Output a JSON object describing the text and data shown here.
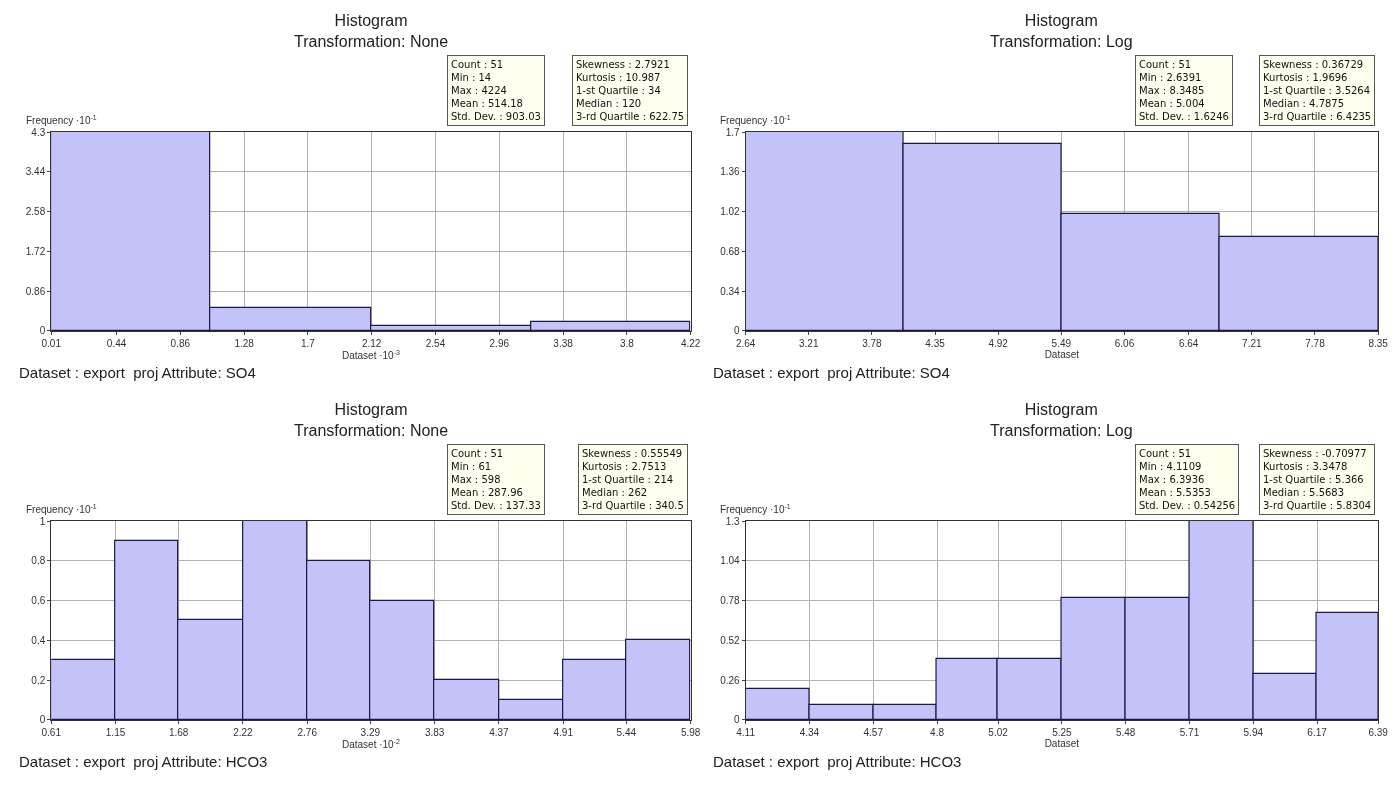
{
  "chart_data": [
    {
      "type": "histogram",
      "title": "Histogram\nTransformation: None",
      "xlabel": "Dataset ·10$^{-3}$",
      "ylabel": "Frequency ·10$^{-1}$",
      "bins": [
        0.01,
        1.06,
        2.12,
        3.17,
        4.22
      ],
      "values": [
        4.3,
        0.5,
        0.1,
        0.2
      ],
      "color": "#c3c3f9",
      "xlim": [
        0.01,
        4.22
      ],
      "xticks": [
        0.01,
        0.44,
        0.86,
        1.28,
        1.7,
        2.12,
        2.54,
        2.96,
        3.38,
        3.8,
        4.22
      ],
      "ylim": [
        0,
        4.3
      ],
      "yticks": [
        0,
        0.86,
        1.72,
        2.58,
        3.44,
        4.3
      ],
      "grid": true,
      "annotations": [
        "Count : 51",
        "Min : 14",
        "Max : 4224",
        "Mean : 514.18",
        "Std. Dev. : 903.03",
        "Skewness : 2.7921",
        "Kurtosis : 10.987",
        "1-st Quartile : 34",
        "Median : 120",
        "3-rd Quartile : 622.75",
        "Dataset : export  proj Attribute: SO4"
      ]
    },
    {
      "type": "histogram",
      "title": "Histogram\nTransformation: Log",
      "xlabel": "Dataset",
      "ylabel": "Frequency ·10$^{-1}$",
      "bins": [
        2.64,
        4.07,
        5.49,
        6.92,
        8.35
      ],
      "values": [
        1.7,
        1.6,
        1.0,
        0.8
      ],
      "color": "#c3c3f9",
      "xlim": [
        2.64,
        8.35
      ],
      "xticks": [
        2.64,
        3.21,
        3.78,
        4.35,
        4.92,
        5.49,
        6.06,
        6.64,
        7.21,
        7.78,
        8.35
      ],
      "ylim": [
        0,
        1.7
      ],
      "yticks": [
        0,
        0.34,
        0.68,
        1.02,
        1.36,
        1.7
      ],
      "grid": true,
      "annotations": [
        "Count : 51",
        "Min : 2.6391",
        "Max : 8.3485",
        "Mean : 5.004",
        "Std. Dev. : 1.6246",
        "Skewness : 0.36729",
        "Kurtosis : 1.9696",
        "1-st Quartile : 3.5264",
        "Median : 4.7875",
        "3-rd Quartile : 6.4235",
        "Dataset : export  proj Attribute: SO4"
      ]
    },
    {
      "type": "histogram",
      "title": "Histogram\nTransformation: None",
      "xlabel": "Dataset ·10$^{-2}$",
      "ylabel": "Frequency ·10$^{-1}$",
      "bins": [
        0.61,
        1.15,
        1.68,
        2.22,
        2.76,
        3.29,
        3.83,
        4.37,
        4.91,
        5.44,
        5.98
      ],
      "values": [
        0.3,
        0.9,
        0.5,
        1.0,
        0.8,
        0.6,
        0.2,
        0.1,
        0.3,
        0.4
      ],
      "color": "#c3c3f9",
      "xlim": [
        0.61,
        5.98
      ],
      "xticks": [
        0.61,
        1.15,
        1.68,
        2.22,
        2.76,
        3.29,
        3.83,
        4.37,
        4.91,
        5.44,
        5.98
      ],
      "ylim": [
        0,
        1
      ],
      "yticks": [
        0,
        0.2,
        0.4,
        0.6,
        0.8,
        1
      ],
      "grid": true,
      "annotations": [
        "Count : 51",
        "Min : 61",
        "Max : 598",
        "Mean : 287.96",
        "Std. Dev. : 137.33",
        "Skewness : 0.55549",
        "Kurtosis : 2.7513",
        "1-st Quartile : 214",
        "Median : 262",
        "3-rd Quartile : 340.5",
        "Dataset : export  proj Attribute: HCO3"
      ]
    },
    {
      "type": "histogram",
      "title": "Histogram\nTransformation: Log",
      "xlabel": "Dataset",
      "ylabel": "Frequency ·10$^{-1}$",
      "bins": [
        4.11,
        4.34,
        4.57,
        4.8,
        5.02,
        5.25,
        5.48,
        5.71,
        5.94,
        6.17,
        6.39
      ],
      "values": [
        0.2,
        0.1,
        0.1,
        0.4,
        0.4,
        0.8,
        0.8,
        1.3,
        0.3,
        0.7
      ],
      "color": "#c3c3f9",
      "xlim": [
        4.11,
        6.39
      ],
      "xticks": [
        4.11,
        4.34,
        4.57,
        4.8,
        5.02,
        5.25,
        5.48,
        5.71,
        5.94,
        6.17,
        6.39
      ],
      "ylim": [
        0,
        1.3
      ],
      "yticks": [
        0,
        0.26,
        0.52,
        0.78,
        1.04,
        1.3
      ],
      "grid": true,
      "annotations": [
        "Count : 51",
        "Min : 4.1109",
        "Max : 6.3936",
        "Mean : 5.5353",
        "Std. Dev. : 0.54256",
        "Skewness : -0.70977",
        "Kurtosis : 3.3478",
        "1-st Quartile : 5.366",
        "Median : 5.5683",
        "3-rd Quartile : 5.8304",
        "Dataset : export  proj Attribute: HCO3"
      ]
    }
  ]
}
